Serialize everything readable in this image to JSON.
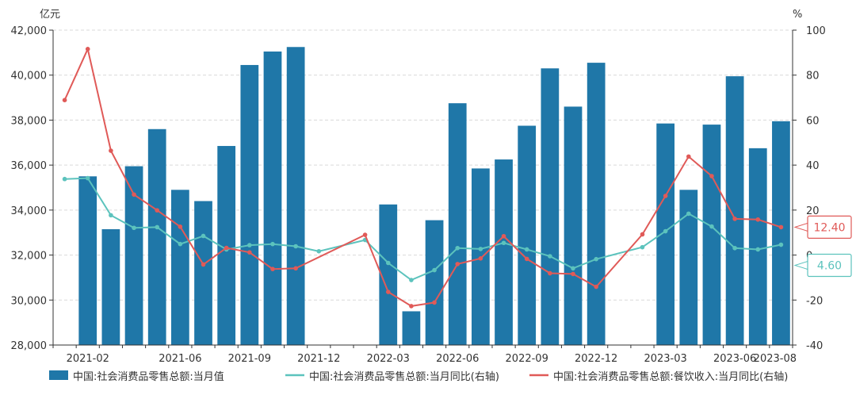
{
  "chart_data": {
    "type": "bar",
    "left_unit": "亿元",
    "right_unit": "%",
    "left_axis": {
      "min": 28000,
      "max": 42000,
      "ticks": [
        "28,000",
        "30,000",
        "32,000",
        "34,000",
        "36,000",
        "38,000",
        "40,000",
        "42,000"
      ]
    },
    "right_axis": {
      "min": -40,
      "max": 100,
      "ticks": [
        "-40",
        "-20",
        "0",
        "20",
        "40",
        "60",
        "80",
        "100"
      ]
    },
    "grid": true,
    "legend_position": "bottom",
    "months": [
      "2021-01",
      "2021-02",
      "2021-03",
      "2021-04",
      "2021-05",
      "2021-06",
      "2021-07",
      "2021-08",
      "2021-09",
      "2021-10",
      "2021-11",
      "2021-12",
      "2022-01",
      "2022-02",
      "2022-03",
      "2022-04",
      "2022-05",
      "2022-06",
      "2022-07",
      "2022-08",
      "2022-09",
      "2022-10",
      "2022-11",
      "2022-12",
      "2023-01",
      "2023-02",
      "2023-03",
      "2023-04",
      "2023-05",
      "2023-06",
      "2023-07",
      "2023-08"
    ],
    "x_labels": [
      {
        "index": 1,
        "text": "2021-02"
      },
      {
        "index": 5,
        "text": "2021-06"
      },
      {
        "index": 8,
        "text": "2021-09"
      },
      {
        "index": 11,
        "text": "2021-12"
      },
      {
        "index": 14,
        "text": "2022-03"
      },
      {
        "index": 17,
        "text": "2022-06"
      },
      {
        "index": 20,
        "text": "2022-09"
      },
      {
        "index": 23,
        "text": "2022-12"
      },
      {
        "index": 26,
        "text": "2023-03"
      },
      {
        "index": 29,
        "text": "2023-06"
      },
      {
        "index": 31,
        "text": "2023-08"
      }
    ],
    "series": [
      {
        "name": "中国:社会消费品零售总额:当月值",
        "kind": "bar",
        "axis": "left",
        "color": "#1f77a8",
        "values": [
          null,
          35500,
          33150,
          35950,
          37600,
          34900,
          34400,
          36850,
          40450,
          41050,
          41250,
          null,
          null,
          null,
          34250,
          29500,
          33550,
          38750,
          35850,
          36250,
          37750,
          40300,
          38600,
          40550,
          null,
          null,
          37850,
          34900,
          37800,
          39950,
          36750,
          37950
        ]
      },
      {
        "name": "中国:社会消费品零售总额:当月同比(右轴)",
        "kind": "line",
        "axis": "right",
        "color": "#5cc3bd",
        "values": [
          33.8,
          34.2,
          17.7,
          12.1,
          12.4,
          4.9,
          8.5,
          2.5,
          4.4,
          4.9,
          3.9,
          1.7,
          null,
          6.7,
          -3.5,
          -11.1,
          -6.7,
          3.1,
          2.7,
          5.4,
          2.5,
          -0.5,
          -5.9,
          -1.8,
          null,
          3.5,
          10.6,
          18.4,
          12.7,
          3.1,
          2.5,
          4.6
        ],
        "end_label": "4.60"
      },
      {
        "name": "中国:社会消费品零售总额:餐饮收入:当月同比(右轴)",
        "kind": "line",
        "axis": "right",
        "color": "#e05a58",
        "values": [
          68.9,
          91.6,
          46.4,
          26.9,
          19.9,
          12.6,
          -4.2,
          3.2,
          1.2,
          -6.2,
          -5.9,
          null,
          null,
          9.0,
          -16.4,
          -22.7,
          -21.1,
          -4.0,
          -1.5,
          8.4,
          -1.7,
          -8.1,
          -8.4,
          -14.1,
          null,
          9.2,
          26.3,
          43.8,
          35.1,
          16.1,
          15.8,
          12.4
        ],
        "end_label": "12.40"
      }
    ]
  }
}
